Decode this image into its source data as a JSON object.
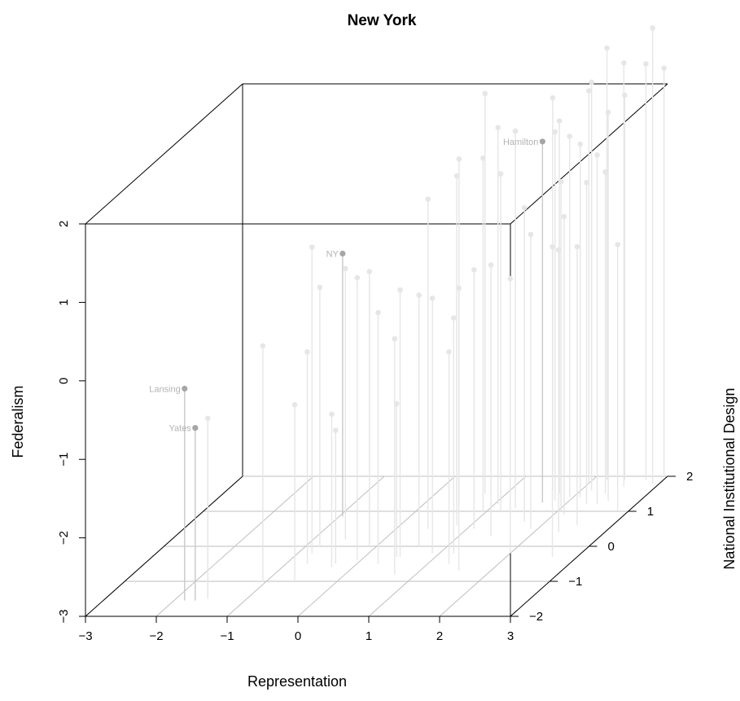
{
  "chart_data": {
    "type": "scatter",
    "subtype": "3d-scatter-with-drop-lines",
    "title": "New York",
    "xlabel": "Representation",
    "ylabel": "National Institutional Design",
    "zlabel": "Federalism",
    "xlim": [
      -3,
      3
    ],
    "ylim": [
      -2,
      2
    ],
    "zlim": [
      -3,
      2
    ],
    "x_ticks": [
      "−3",
      "−2",
      "−1",
      "0",
      "1",
      "2",
      "3"
    ],
    "y_ticks": [
      "−2",
      "−1",
      "0",
      "1",
      "2"
    ],
    "z_ticks": [
      "−3",
      "−2",
      "−1",
      "0",
      "1",
      "2"
    ],
    "colors": {
      "background_point": "#e6e6e6",
      "highlight_point": "#a6a6a6",
      "label": "#b3b3b3",
      "grid": "#bebebe",
      "box": "#000000"
    },
    "labeled_points": [
      {
        "label": "Hamilton",
        "x": 1.65,
        "y": 1.25,
        "z": 1.6
      },
      {
        "label": "NY",
        "x": -0.95,
        "y": 0.85,
        "z": 0.35
      },
      {
        "label": "Lansing",
        "x": -1.85,
        "y": -1.55,
        "z": -0.3
      },
      {
        "label": "Yates",
        "x": -1.7,
        "y": -1.55,
        "z": -0.8
      }
    ],
    "points": [
      {
        "x": -1.55,
        "y": -1.5,
        "z": -0.7
      },
      {
        "x": -1.05,
        "y": -1.0,
        "z": 0.0
      },
      {
        "x": -0.8,
        "y": -0.2,
        "z": 0.9
      },
      {
        "x": -0.8,
        "y": 0.0,
        "z": 0.3
      },
      {
        "x": -0.7,
        "y": -0.5,
        "z": -0.3
      },
      {
        "x": -0.55,
        "y": 0.2,
        "z": 0.45
      },
      {
        "x": -0.6,
        "y": -1.0,
        "z": -0.75
      },
      {
        "x": -0.3,
        "y": -0.6,
        "z": -1.05
      },
      {
        "x": -0.3,
        "y": -0.5,
        "z": -1.3
      },
      {
        "x": -0.1,
        "y": 0.0,
        "z": 0.5
      },
      {
        "x": -0.05,
        "y": -0.4,
        "z": 0.6
      },
      {
        "x": 0.3,
        "y": -0.5,
        "z": 0.2
      },
      {
        "x": 0.45,
        "y": -0.3,
        "z": -1.05
      },
      {
        "x": 0.45,
        "y": 0.5,
        "z": 1.2
      },
      {
        "x": 0.5,
        "y": 1.2,
        "z": 1.4
      },
      {
        "x": 0.5,
        "y": -0.3,
        "z": 0.4
      },
      {
        "x": 0.6,
        "y": 0.0,
        "z": 0.2
      },
      {
        "x": 0.7,
        "y": -0.8,
        "z": 0.0
      },
      {
        "x": 0.8,
        "y": 0.6,
        "z": 1.45
      },
      {
        "x": 0.9,
        "y": -0.2,
        "z": 0.25
      },
      {
        "x": 0.95,
        "y": 1.0,
        "z": 1.5
      },
      {
        "x": 0.7,
        "y": 1.5,
        "z": 2.1
      },
      {
        "x": 1.05,
        "y": 1.2,
        "z": 1.8
      },
      {
        "x": 1.1,
        "y": 0.5,
        "z": 0.3
      },
      {
        "x": 1.2,
        "y": 1.0,
        "z": 1.3
      },
      {
        "x": 1.2,
        "y": -0.2,
        "z": 0.0
      },
      {
        "x": 1.3,
        "y": -0.5,
        "z": -0.3
      },
      {
        "x": 1.35,
        "y": 1.1,
        "z": 1.8
      },
      {
        "x": 1.45,
        "y": 0.3,
        "z": 0.45
      },
      {
        "x": 1.55,
        "y": -0.7,
        "z": 0.6
      },
      {
        "x": 1.6,
        "y": 1.6,
        "z": 2.0
      },
      {
        "x": 1.7,
        "y": 0.7,
        "z": 1.0
      },
      {
        "x": 1.75,
        "y": 1.5,
        "z": 1.75
      },
      {
        "x": 1.8,
        "y": 1.3,
        "z": 1.7
      },
      {
        "x": 1.9,
        "y": 0.5,
        "z": 0.75
      },
      {
        "x": 1.95,
        "y": 1.4,
        "z": 1.6
      },
      {
        "x": 2.0,
        "y": 1.8,
        "z": 2.0
      },
      {
        "x": 2.0,
        "y": -0.2,
        "z": 0.5
      },
      {
        "x": 2.05,
        "y": 1.0,
        "z": 1.2
      },
      {
        "x": 2.1,
        "y": 1.4,
        "z": 1.5
      },
      {
        "x": 2.15,
        "y": 1.6,
        "z": 2.2
      },
      {
        "x": 2.15,
        "y": 0.9,
        "z": 0.8
      },
      {
        "x": 2.2,
        "y": 1.9,
        "z": 2.5
      },
      {
        "x": 2.3,
        "y": 1.2,
        "z": 1.1
      },
      {
        "x": 2.35,
        "y": 0.4,
        "z": 0.6
      },
      {
        "x": 2.4,
        "y": 1.5,
        "z": 1.1
      },
      {
        "x": 2.45,
        "y": 1.9,
        "z": 1.9
      },
      {
        "x": 2.45,
        "y": 1.2,
        "z": 1.45
      },
      {
        "x": 2.55,
        "y": 1.3,
        "z": 1.95
      },
      {
        "x": 2.55,
        "y": 1.7,
        "z": 2.4
      },
      {
        "x": 2.5,
        "y": 0.6,
        "z": 0.55
      },
      {
        "x": 2.65,
        "y": -0.3,
        "z": 0.95
      },
      {
        "x": 2.75,
        "y": 1.9,
        "z": 2.3
      },
      {
        "x": 2.85,
        "y": 1.0,
        "z": 0.4
      },
      {
        "x": 2.9,
        "y": 1.8,
        "z": 2.8
      },
      {
        "x": 2.95,
        "y": 2.0,
        "z": 2.2
      }
    ]
  }
}
